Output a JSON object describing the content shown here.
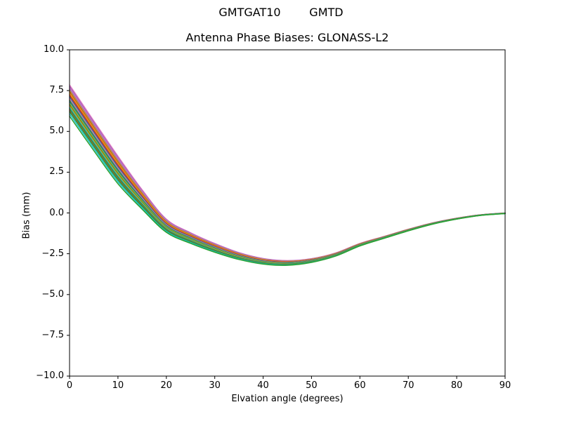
{
  "figure": {
    "suptitle": "GMTGAT10        GMTD",
    "background": "#ffffff",
    "spine_color": "#000000",
    "text_color": "#000000"
  },
  "chart_data": {
    "type": "line",
    "title": "Antenna Phase Biases: GLONASS-L2",
    "xlabel": "Elvation angle (degrees)",
    "ylabel": "Bias (mm)",
    "xlim": [
      0,
      90
    ],
    "ylim": [
      -10.0,
      10.0
    ],
    "xticks": [
      0,
      10,
      20,
      30,
      40,
      50,
      60,
      70,
      80,
      90
    ],
    "yticks": [
      10.0,
      7.5,
      5.0,
      2.5,
      0.0,
      -2.5,
      -5.0,
      -7.5,
      -10.0
    ],
    "grid": false,
    "legend": "none",
    "description": "Bundle of antenna phase bias curves vs elevation angle; all curves start between about +5.9 and +7.9 mm at 0 degrees, dip to a minimum near -3.1 mm around 43-45 degrees, and converge to 0 mm at 90 degrees.",
    "x": [
      0,
      5,
      10,
      15,
      20,
      25,
      30,
      35,
      40,
      45,
      50,
      55,
      60,
      65,
      70,
      75,
      80,
      85,
      90
    ],
    "center_bias": [
      6.85,
      4.7,
      2.6,
      0.8,
      -0.8,
      -1.55,
      -2.15,
      -2.65,
      -2.97,
      -3.07,
      -2.92,
      -2.55,
      -1.95,
      -1.5,
      -1.05,
      -0.65,
      -0.35,
      -0.13,
      -0.02
    ],
    "spread_decay": [
      1.0,
      0.95,
      0.88,
      0.62,
      0.42,
      0.34,
      0.28,
      0.22,
      0.18,
      0.15,
      0.12,
      0.1,
      0.08,
      0.06,
      0.05,
      0.04,
      0.03,
      0.02,
      0.02
    ],
    "line_width": 1.5,
    "lines": [
      {
        "color": "#e377c2",
        "offset": 1.0
      },
      {
        "color": "#9467bd",
        "offset": 0.9
      },
      {
        "color": "#e377c2",
        "offset": 0.82
      },
      {
        "color": "#9467bd",
        "offset": 0.74
      },
      {
        "color": "#bcbd22",
        "offset": 0.66
      },
      {
        "color": "#d62728",
        "offset": 0.58
      },
      {
        "color": "#bcbd22",
        "offset": 0.51
      },
      {
        "color": "#ff7f0e",
        "offset": 0.44
      },
      {
        "color": "#d62728",
        "offset": 0.37
      },
      {
        "color": "#8c564b",
        "offset": 0.3
      },
      {
        "color": "#1f77b4",
        "offset": 0.23
      },
      {
        "color": "#e377c2",
        "offset": 0.16
      },
      {
        "color": "#7f7f7f",
        "offset": 0.09
      },
      {
        "color": "#2ca02c",
        "offset": 0.02
      },
      {
        "color": "#1f77b4",
        "offset": -0.05
      },
      {
        "color": "#bcbd22",
        "offset": -0.13
      },
      {
        "color": "#2ca02c",
        "offset": -0.21
      },
      {
        "color": "#ff7f0e",
        "offset": -0.29
      },
      {
        "color": "#17becf",
        "offset": -0.37
      },
      {
        "color": "#2ca02c",
        "offset": -0.46
      },
      {
        "color": "#8c564b",
        "offset": -0.55
      },
      {
        "color": "#2ca02c",
        "offset": -0.65
      },
      {
        "color": "#17becf",
        "offset": -0.78
      },
      {
        "color": "#2ca02c",
        "offset": -0.92
      }
    ]
  }
}
